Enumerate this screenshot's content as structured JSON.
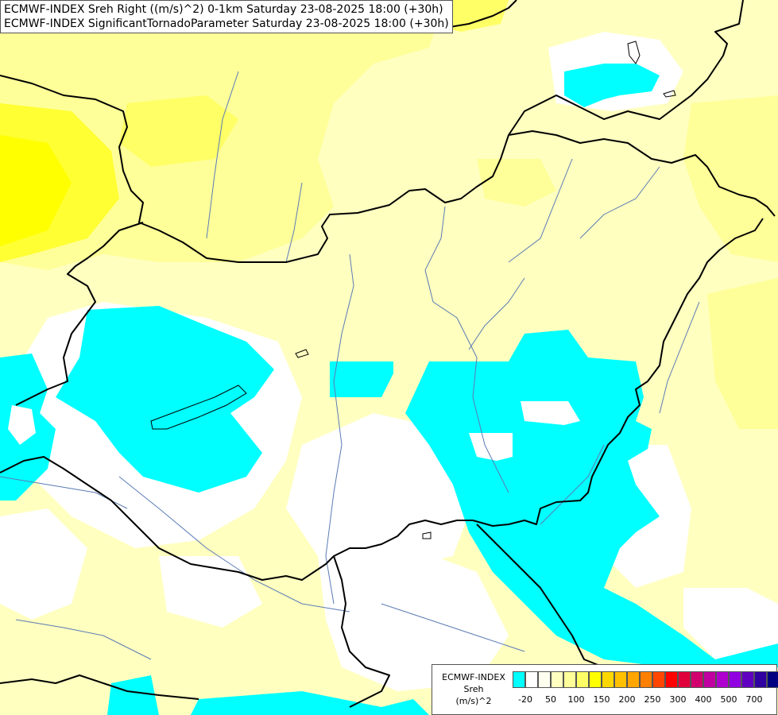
{
  "header": {
    "line1": "ECMWF-INDEX Sreh Right ((m/s)^2) 0-1km Saturday 23-08-2025 18:00 (+30h)",
    "line2": "ECMWF-INDEX SignificantTornadoParameter Saturday 23-08-2025 18:00 (+30h)"
  },
  "legend": {
    "line1": "ECMWF-INDEX",
    "line2": "Sreh",
    "line3": "(m/s)^2",
    "colors": [
      "#00ffff",
      "#ffffff",
      "#fffff0",
      "#ffffc0",
      "#ffff99",
      "#ffff66",
      "#ffff00",
      "#ffd700",
      "#ffc000",
      "#ffa500",
      "#ff7f00",
      "#ff4500",
      "#ff0000",
      "#e0003c",
      "#d2006e",
      "#c000a0",
      "#b000d0",
      "#9000e0",
      "#6000c0",
      "#3000a0",
      "#000080"
    ],
    "labels": [
      "-20",
      "50",
      "100",
      "150",
      "200",
      "250",
      "300",
      "400",
      "500",
      "700"
    ]
  },
  "colors": {
    "cyan": "#00ffff",
    "pale_yellow": "#ffffc0",
    "light_yellow": "#ffff99",
    "yellow": "#ffff66",
    "strong_yellow": "#ffff00",
    "border": "#000000",
    "river": "#5a7bb5"
  }
}
